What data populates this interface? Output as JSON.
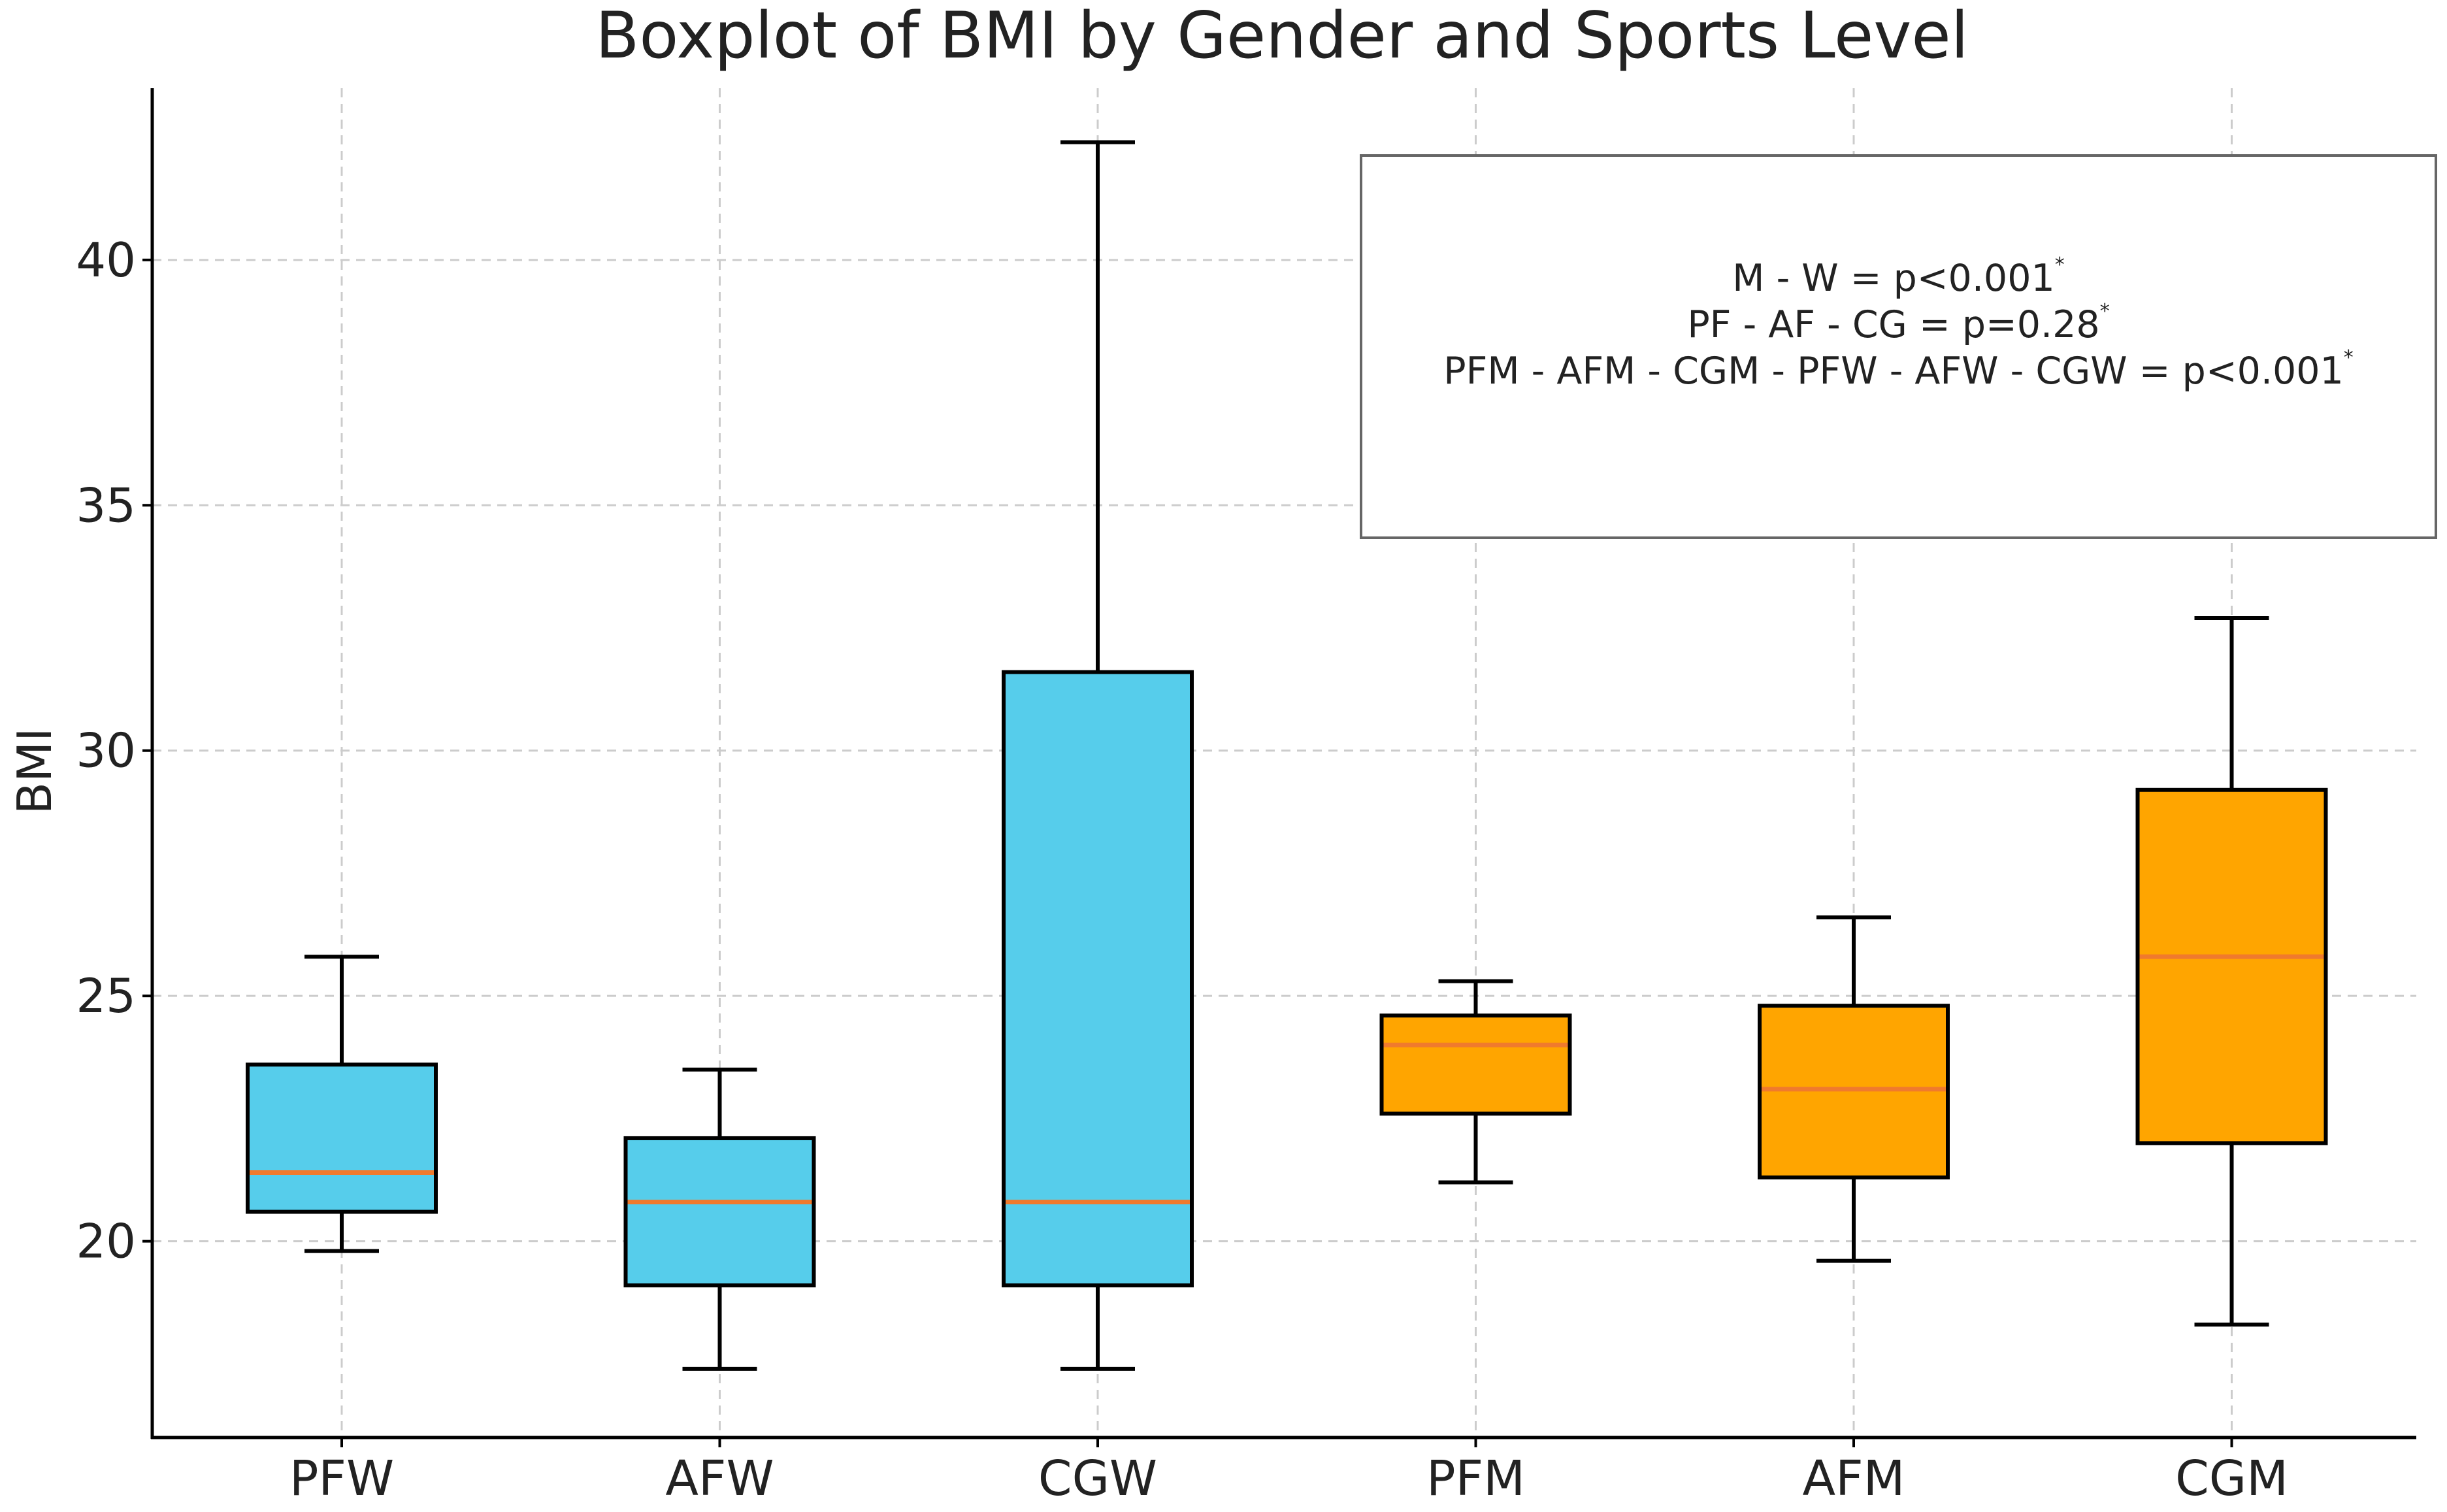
{
  "chart_data": {
    "type": "boxplot",
    "title": "Boxplot of BMI by Gender and Sports Level",
    "xlabel": "",
    "ylabel": "BMI",
    "ylim": [
      16,
      43.5
    ],
    "yticks": [
      20,
      25,
      30,
      35,
      40
    ],
    "ytick_labels": [
      "20",
      "25",
      "30",
      "35",
      "40"
    ],
    "grid": true,
    "categories": [
      "PFW",
      "AFW",
      "CGW",
      "PFM",
      "AFM",
      "CGM"
    ],
    "colors": {
      "women": "#56CDEB",
      "men": "#FFA500",
      "median": "#F07A2D",
      "outline": "#000000",
      "grid": "#CCCCCC"
    },
    "boxes": [
      {
        "name": "PFW",
        "group": "women",
        "whisker_low": 19.8,
        "q1": 20.6,
        "median": 21.4,
        "q3": 23.6,
        "whisker_high": 25.8
      },
      {
        "name": "AFW",
        "group": "women",
        "whisker_low": 17.4,
        "q1": 19.1,
        "median": 20.8,
        "q3": 22.1,
        "whisker_high": 23.5
      },
      {
        "name": "CGW",
        "group": "women",
        "whisker_low": 17.4,
        "q1": 19.1,
        "median": 20.8,
        "q3": 31.6,
        "whisker_high": 42.4
      },
      {
        "name": "PFM",
        "group": "men",
        "whisker_low": 21.2,
        "q1": 22.6,
        "median": 24.0,
        "q3": 24.6,
        "whisker_high": 25.3
      },
      {
        "name": "AFM",
        "group": "men",
        "whisker_low": 19.6,
        "q1": 21.3,
        "median": 23.1,
        "q3": 24.8,
        "whisker_high": 26.6
      },
      {
        "name": "CGM",
        "group": "men",
        "whisker_low": 18.3,
        "q1": 22.0,
        "median": 25.8,
        "q3": 29.2,
        "whisker_high": 32.7
      }
    ],
    "annotation": {
      "lines": [
        {
          "text": "M - W = p<0.001",
          "sup": "*"
        },
        {
          "text": "PF - AF - CG = p=0.28",
          "sup": "*"
        },
        {
          "text": "PFM - AFM - CGM - PFW - AFW - CGW = p<0.001",
          "sup": "*"
        }
      ],
      "placement": "top-right"
    }
  }
}
